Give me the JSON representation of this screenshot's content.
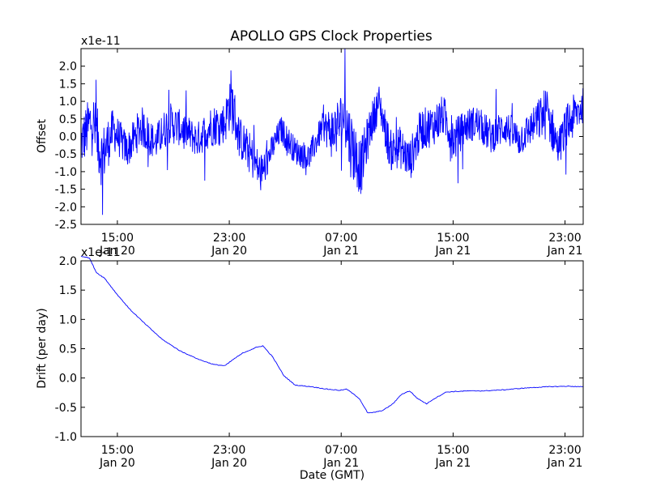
{
  "title": "APOLLO GPS Clock Properties",
  "xlabel": "Date (GMT)",
  "x_ticks": [
    {
      "t": 14.3,
      "time": "15:00",
      "date": "Jan 20"
    },
    {
      "t": 22.3,
      "time": "23:00",
      "date": "Jan 20"
    },
    {
      "t": 30.3,
      "time": "07:00",
      "date": "Jan 21"
    },
    {
      "t": 38.3,
      "time": "15:00",
      "date": "Jan 21"
    },
    {
      "t": 46.3,
      "time": "23:00",
      "date": "Jan 21"
    }
  ],
  "chart_data": [
    {
      "type": "line",
      "name": "offset",
      "ylabel": "Offset",
      "scale_label": "x1e-11",
      "xlim": [
        11.7,
        47.6
      ],
      "ylim": [
        -2.5,
        2.5
      ],
      "yticks": [
        "2.0",
        "1.5",
        "1.0",
        "0.5",
        "0.0",
        "-0.5",
        "-1.0",
        "-1.5",
        "-2.0",
        "-2.5"
      ],
      "ytick_values": [
        2.0,
        1.5,
        1.0,
        0.5,
        0.0,
        -0.5,
        -1.0,
        -1.5,
        -2.0,
        -2.5
      ],
      "color": "#0000ff",
      "x": [
        11.7,
        12.5,
        13.2,
        14.0,
        15.0,
        16.0,
        17.0,
        18.0,
        19.0,
        20.0,
        21.0,
        22.0,
        22.4,
        23.0,
        23.8,
        24.6,
        25.2,
        26.0,
        27.0,
        28.0,
        29.0,
        29.7,
        30.5,
        31.0,
        31.7,
        32.4,
        33.0,
        33.8,
        34.5,
        35.2,
        36.0,
        36.8,
        37.6,
        38.4,
        39.2,
        40.0,
        41.0,
        42.0,
        43.0,
        44.0,
        45.0,
        45.8,
        46.6,
        47.6
      ],
      "y": [
        -0.2,
        0.5,
        -0.6,
        0.2,
        -0.4,
        0.3,
        -0.2,
        0.4,
        0.2,
        -0.1,
        0.3,
        0.4,
        1.1,
        0.0,
        -0.5,
        -1.1,
        -0.5,
        0.2,
        -0.4,
        -0.6,
        0.3,
        0.1,
        0.6,
        -0.2,
        -0.9,
        0.3,
        1.0,
        -0.4,
        -0.3,
        -0.7,
        0.2,
        0.3,
        0.6,
        -0.1,
        0.3,
        0.4,
        0.0,
        0.3,
        -0.1,
        0.3,
        0.7,
        -0.3,
        0.4,
        0.9
      ],
      "amplitude": [
        0.7,
        0.9,
        0.9,
        0.6,
        0.5,
        0.6,
        0.5,
        0.6,
        0.5,
        0.5,
        0.6,
        0.6,
        0.9,
        0.6,
        0.6,
        0.6,
        0.4,
        0.4,
        0.4,
        0.4,
        0.4,
        0.8,
        0.8,
        1.0,
        0.8,
        0.6,
        0.5,
        0.6,
        0.6,
        0.6,
        0.6,
        0.6,
        0.6,
        0.6,
        0.5,
        0.5,
        0.5,
        0.5,
        0.5,
        0.5,
        0.8,
        0.5,
        0.7,
        0.5
      ]
    },
    {
      "type": "line",
      "name": "drift",
      "ylabel": "Drift (per day)",
      "scale_label": "x1e-11",
      "xlim": [
        11.7,
        47.6
      ],
      "ylim": [
        -1.0,
        2.0
      ],
      "yticks": [
        "2.0",
        "1.5",
        "1.0",
        "0.5",
        "0.0",
        "-0.5",
        "-1.0"
      ],
      "ytick_values": [
        2.0,
        1.5,
        1.0,
        0.5,
        0.0,
        -0.5,
        -1.0
      ],
      "color": "#0000ff",
      "x": [
        11.7,
        12.3,
        12.8,
        13.4,
        14.2,
        15.2,
        16.3,
        17.5,
        18.8,
        20.2,
        21.2,
        22.0,
        22.6,
        23.3,
        24.2,
        24.7,
        25.4,
        26.2,
        27.0,
        28.2,
        29.3,
        30.2,
        30.7,
        31.6,
        32.2,
        32.8,
        33.3,
        34.0,
        34.6,
        35.2,
        35.7,
        36.4,
        36.9,
        37.8,
        38.5,
        39.4,
        40.5,
        42.0,
        43.5,
        45.0,
        46.5,
        47.6
      ],
      "y": [
        2.08,
        2.05,
        1.8,
        1.7,
        1.45,
        1.17,
        0.92,
        0.66,
        0.46,
        0.31,
        0.23,
        0.21,
        0.32,
        0.43,
        0.52,
        0.55,
        0.36,
        0.04,
        -0.12,
        -0.15,
        -0.19,
        -0.21,
        -0.19,
        -0.35,
        -0.6,
        -0.58,
        -0.55,
        -0.44,
        -0.28,
        -0.22,
        -0.34,
        -0.44,
        -0.36,
        -0.24,
        -0.23,
        -0.22,
        -0.22,
        -0.2,
        -0.17,
        -0.15,
        -0.14,
        -0.15
      ]
    }
  ]
}
